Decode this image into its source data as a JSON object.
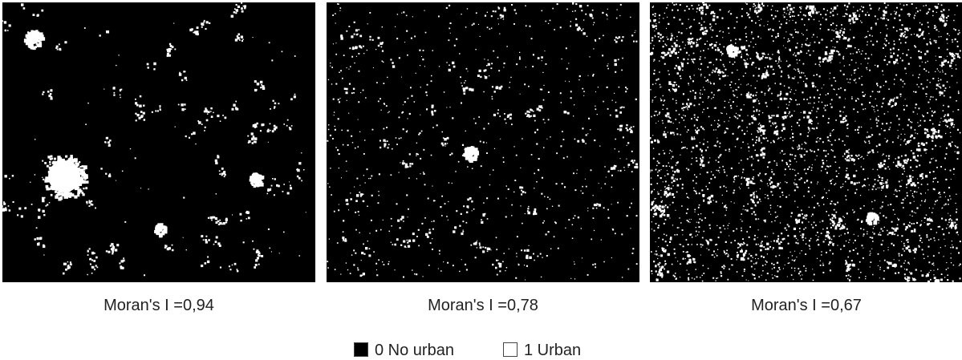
{
  "panels": [
    {
      "caption": "Moran's I =0,94"
    },
    {
      "caption": "Moran's I =0,78"
    },
    {
      "caption": "Moran's I =0,67"
    }
  ],
  "legend": {
    "items": [
      {
        "label": "0 No urban",
        "color": "#000000"
      },
      {
        "label": "1 Urban",
        "color": "#ffffff"
      }
    ]
  }
}
